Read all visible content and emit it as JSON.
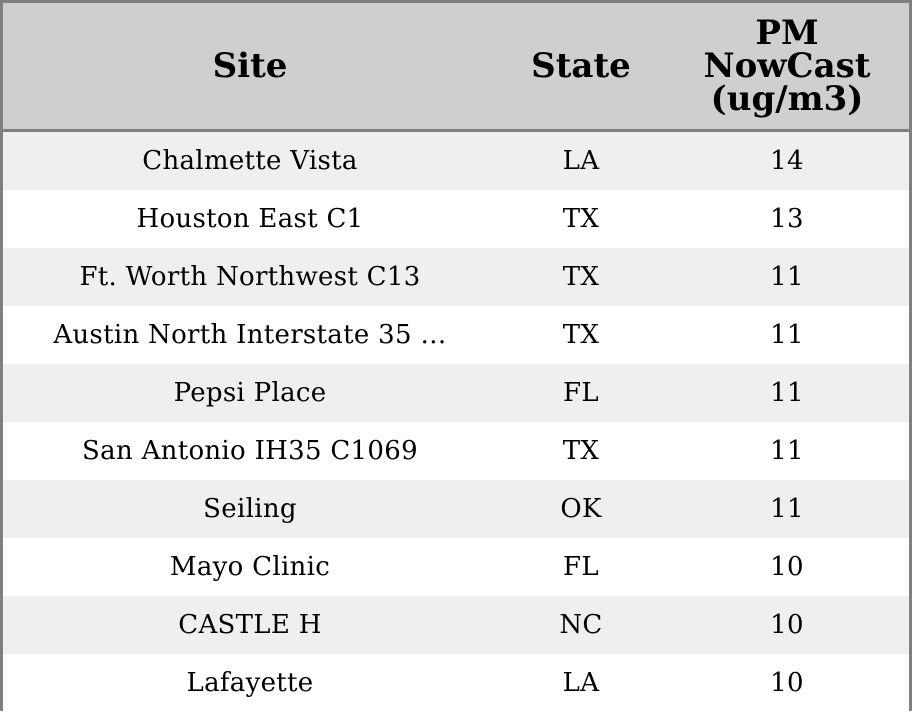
{
  "chart_data": {
    "type": "table",
    "columns": [
      "Site",
      "State",
      "PM\nNowCast\n(ug/m3)"
    ],
    "rows": [
      {
        "site": "Chalmette Vista",
        "state": "LA",
        "pm": "14"
      },
      {
        "site": "Houston East C1",
        "state": "TX",
        "pm": "13"
      },
      {
        "site": "Ft. Worth Northwest C13",
        "state": "TX",
        "pm": "11"
      },
      {
        "site": "Austin North Interstate 35 …",
        "state": "TX",
        "pm": "11"
      },
      {
        "site": "Pepsi Place",
        "state": "FL",
        "pm": "11"
      },
      {
        "site": "San Antonio IH35 C1069",
        "state": "TX",
        "pm": "11"
      },
      {
        "site": "Seiling",
        "state": "OK",
        "pm": "11"
      },
      {
        "site": "Mayo Clinic",
        "state": "FL",
        "pm": "10"
      },
      {
        "site": "CASTLE H",
        "state": "NC",
        "pm": "10"
      },
      {
        "site": "Lafayette",
        "state": "LA",
        "pm": "10"
      }
    ]
  },
  "colors": {
    "header_bg": "#cfcfcf",
    "stripe_bg": "#efefef",
    "border": "#7f7f7f"
  }
}
